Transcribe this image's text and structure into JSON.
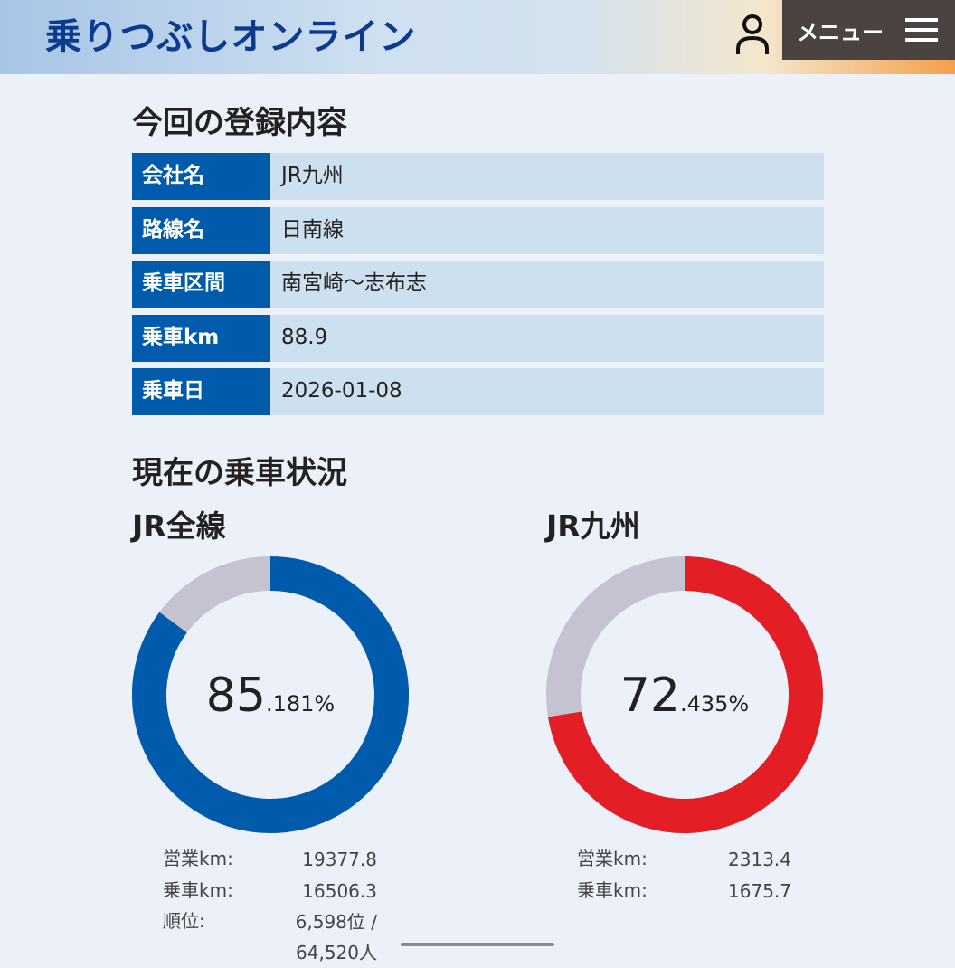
{
  "header": {
    "title": "乗りつぶしオンライン",
    "menu": "メニュー"
  },
  "registration": {
    "heading": "今回の登録内容",
    "rows": [
      {
        "label": "会社名",
        "value": "JR九州"
      },
      {
        "label": "路線名",
        "value": "日南線"
      },
      {
        "label": "乗車区間",
        "value": "南宮崎～志布志"
      },
      {
        "label": "乗車km",
        "value": "88.9"
      },
      {
        "label": "乗車日",
        "value": "2026-01-08"
      }
    ]
  },
  "status": {
    "heading": "現在の乗車状況",
    "charts": [
      {
        "type": "donut",
        "title": "JR全線",
        "percent": 85.181,
        "percent_label": [
          "85",
          ".181%"
        ],
        "color": "#005bac",
        "track_color": "#c3c3d1",
        "stats": [
          {
            "label": "営業km:",
            "value": "19377.8"
          },
          {
            "label": "乗車km:",
            "value": "16506.3"
          },
          {
            "label": "順位:",
            "value": "6,598位 / 64,520人"
          }
        ]
      },
      {
        "type": "donut",
        "title": "JR九州",
        "percent": 72.435,
        "percent_label": [
          "72",
          ".435%"
        ],
        "color": "#e31e25",
        "track_color": "#c3c3d1",
        "stats": [
          {
            "label": "営業km:",
            "value": "2313.4"
          },
          {
            "label": "乗車km:",
            "value": "1675.7"
          }
        ]
      }
    ]
  }
}
